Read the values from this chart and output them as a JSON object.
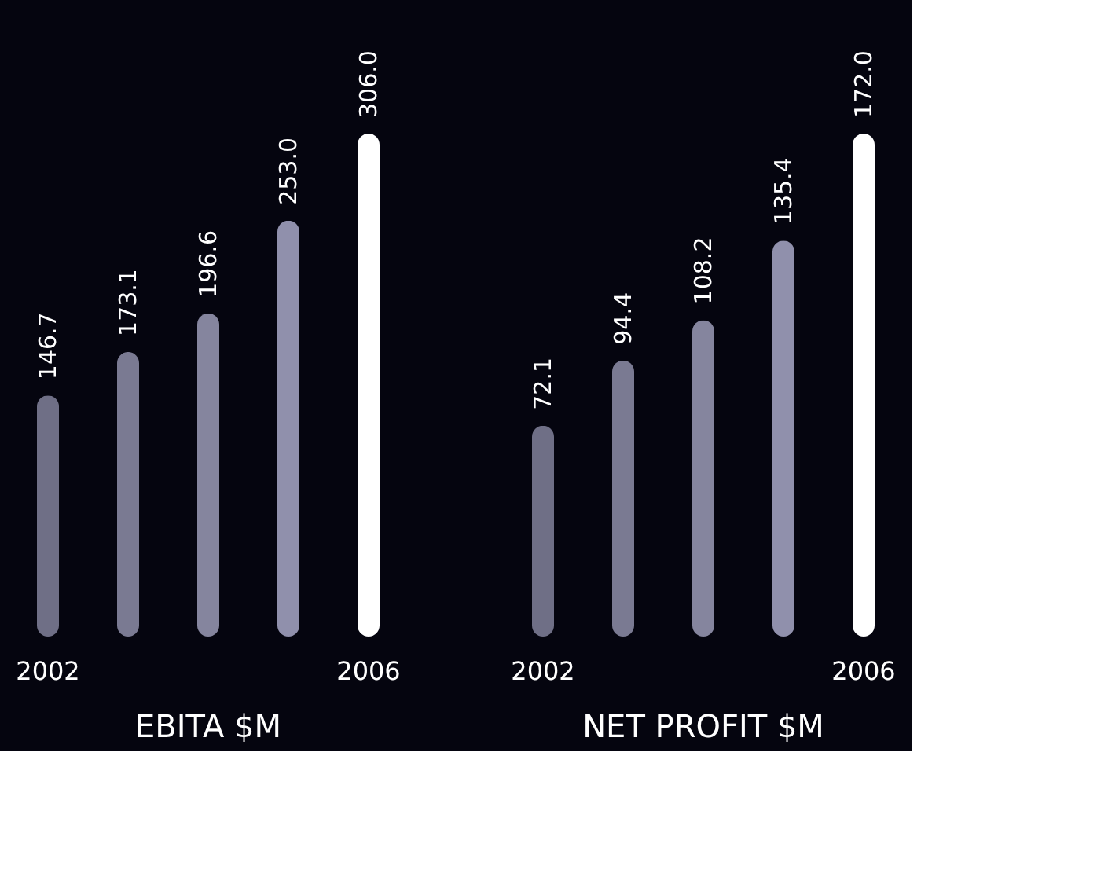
{
  "chart_data": [
    {
      "type": "bar",
      "title": "EBITA $M",
      "categories": [
        "2002",
        null,
        null,
        null,
        "2006"
      ],
      "values": [
        146.7,
        173.1,
        196.6,
        253.0,
        306.0
      ],
      "value_labels": [
        "146.7",
        "173.1",
        "196.6",
        "253.0",
        "306.0"
      ],
      "colors": [
        "#6f6f86",
        "#7a7a92",
        "#85859e",
        "#9090ac",
        "#ffffff"
      ],
      "tick_labels": "x"
    },
    {
      "type": "bar",
      "title": "NET PROFIT $M",
      "categories": [
        "2002",
        null,
        null,
        null,
        "2006"
      ],
      "values": [
        72.1,
        94.4,
        108.2,
        135.4,
        172.0
      ],
      "value_labels": [
        "72.1",
        "94.4",
        "108.2",
        "135.4",
        "172.0"
      ],
      "colors": [
        "#6f6f86",
        "#7a7a92",
        "#85859e",
        "#9090ac",
        "#ffffff"
      ],
      "tick_labels": "x"
    }
  ]
}
